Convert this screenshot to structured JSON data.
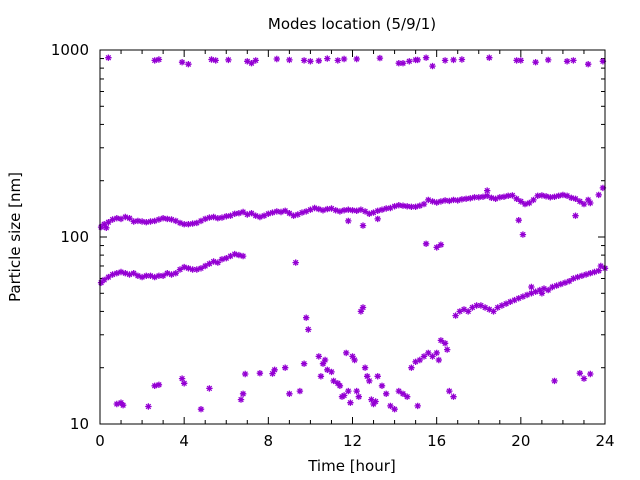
{
  "chart_data": {
    "type": "scatter",
    "title": "Modes location (5/9/1)",
    "xlabel": "Time [hour]",
    "ylabel": "Particle size [nm]",
    "xlim": [
      0,
      24
    ],
    "ylim": [
      10,
      1000
    ],
    "yscale": "log",
    "grid": false,
    "legend": "none",
    "color": "#9400d3",
    "marker": "star",
    "x_ticks": [
      "0",
      "4",
      "8",
      "12",
      "16",
      "20",
      "24"
    ],
    "y_ticks": [
      "10",
      "100",
      "1000"
    ],
    "series": [
      {
        "points": [
          [
            0.4,
            910
          ],
          [
            2.6,
            880
          ],
          [
            2.8,
            890
          ],
          [
            3.9,
            860
          ],
          [
            4.2,
            840
          ],
          [
            5.3,
            890
          ],
          [
            5.5,
            880
          ],
          [
            6.1,
            885
          ],
          [
            7.0,
            870
          ],
          [
            7.2,
            850
          ],
          [
            7.4,
            880
          ],
          [
            8.4,
            895
          ],
          [
            9.0,
            885
          ],
          [
            9.7,
            880
          ],
          [
            10.0,
            870
          ],
          [
            10.4,
            875
          ],
          [
            10.8,
            900
          ],
          [
            11.3,
            880
          ],
          [
            11.6,
            895
          ],
          [
            12.2,
            895
          ],
          [
            13.3,
            905
          ],
          [
            14.2,
            850
          ],
          [
            14.4,
            850
          ],
          [
            14.7,
            870
          ],
          [
            15.0,
            885
          ],
          [
            15.1,
            885
          ],
          [
            15.5,
            910
          ],
          [
            15.8,
            820
          ],
          [
            16.4,
            880
          ],
          [
            16.8,
            885
          ],
          [
            17.2,
            890
          ],
          [
            18.5,
            910
          ],
          [
            19.8,
            880
          ],
          [
            20.0,
            880
          ],
          [
            20.7,
            860
          ],
          [
            21.3,
            885
          ],
          [
            22.2,
            870
          ],
          [
            22.5,
            880
          ],
          [
            23.2,
            840
          ],
          [
            23.9,
            870
          ]
        ]
      },
      {
        "points": [
          [
            0.05,
            113
          ],
          [
            0.2,
            117
          ],
          [
            0.4,
            120
          ],
          [
            0.6,
            124
          ],
          [
            0.8,
            126
          ],
          [
            1.0,
            125
          ],
          [
            1.2,
            128
          ],
          [
            1.4,
            126
          ],
          [
            1.6,
            121
          ],
          [
            1.8,
            122
          ],
          [
            2.0,
            121
          ],
          [
            2.2,
            120
          ],
          [
            2.4,
            121
          ],
          [
            2.6,
            122
          ],
          [
            2.8,
            124
          ],
          [
            3.0,
            126
          ],
          [
            3.2,
            125
          ],
          [
            3.4,
            124
          ],
          [
            3.6,
            122
          ],
          [
            3.8,
            119
          ],
          [
            4.0,
            117
          ],
          [
            4.2,
            117
          ],
          [
            4.4,
            118
          ],
          [
            4.6,
            119
          ],
          [
            4.8,
            122
          ],
          [
            5.0,
            125
          ],
          [
            5.2,
            127
          ],
          [
            5.4,
            128
          ],
          [
            5.6,
            126
          ],
          [
            5.8,
            127
          ],
          [
            6.0,
            129
          ],
          [
            6.2,
            130
          ],
          [
            6.4,
            133
          ],
          [
            6.6,
            134
          ],
          [
            6.8,
            136
          ],
          [
            7.0,
            132
          ],
          [
            7.2,
            134
          ],
          [
            7.4,
            130
          ],
          [
            7.6,
            128
          ],
          [
            7.8,
            130
          ],
          [
            8.0,
            133
          ],
          [
            8.2,
            135
          ],
          [
            8.4,
            137
          ],
          [
            8.6,
            136
          ],
          [
            8.8,
            138
          ],
          [
            9.0,
            134
          ],
          [
            9.2,
            130
          ],
          [
            9.4,
            132
          ],
          [
            9.6,
            135
          ],
          [
            9.8,
            137
          ],
          [
            10.0,
            140
          ],
          [
            10.2,
            143
          ],
          [
            10.4,
            141
          ],
          [
            10.6,
            139
          ],
          [
            10.8,
            141
          ],
          [
            11.0,
            142
          ],
          [
            11.2,
            139
          ],
          [
            11.4,
            137
          ],
          [
            11.6,
            139
          ],
          [
            11.8,
            140
          ],
          [
            12.0,
            139
          ],
          [
            12.2,
            138
          ],
          [
            12.4,
            140
          ],
          [
            12.6,
            137
          ],
          [
            12.8,
            133
          ],
          [
            13.0,
            135
          ],
          [
            13.2,
            138
          ],
          [
            13.4,
            140
          ],
          [
            13.6,
            142
          ],
          [
            13.8,
            143
          ],
          [
            14.0,
            146
          ],
          [
            14.2,
            148
          ],
          [
            14.4,
            147
          ],
          [
            14.6,
            146
          ],
          [
            14.8,
            145
          ],
          [
            15.0,
            145
          ],
          [
            15.2,
            147
          ],
          [
            15.4,
            150
          ],
          [
            15.6,
            158
          ],
          [
            15.8,
            155
          ],
          [
            16.0,
            153
          ],
          [
            16.2,
            155
          ],
          [
            16.4,
            157
          ],
          [
            16.6,
            156
          ],
          [
            16.8,
            158
          ],
          [
            17.0,
            157
          ],
          [
            17.2,
            159
          ],
          [
            17.4,
            160
          ],
          [
            17.6,
            161
          ],
          [
            17.8,
            163
          ],
          [
            18.0,
            163
          ],
          [
            18.2,
            164
          ],
          [
            18.4,
            166
          ],
          [
            18.6,
            162
          ],
          [
            18.8,
            160
          ],
          [
            19.0,
            163
          ],
          [
            19.2,
            164
          ],
          [
            19.4,
            166
          ],
          [
            19.6,
            167
          ],
          [
            19.8,
            160
          ],
          [
            20.0,
            155
          ],
          [
            20.2,
            150
          ],
          [
            20.4,
            152
          ],
          [
            20.6,
            158
          ],
          [
            20.8,
            166
          ],
          [
            21.0,
            167
          ],
          [
            21.2,
            165
          ],
          [
            21.4,
            163
          ],
          [
            21.6,
            164
          ],
          [
            21.8,
            166
          ],
          [
            22.0,
            168
          ],
          [
            22.2,
            166
          ],
          [
            22.4,
            162
          ],
          [
            22.6,
            160
          ],
          [
            22.8,
            155
          ],
          [
            23.0,
            150
          ],
          [
            23.3,
            152
          ],
          [
            23.7,
            168
          ],
          [
            23.9,
            183
          ],
          [
            0.3,
            112
          ],
          [
            12.5,
            115
          ],
          [
            11.8,
            122
          ],
          [
            13.2,
            125
          ],
          [
            19.9,
            123
          ],
          [
            20.1,
            103
          ],
          [
            22.6,
            130
          ],
          [
            23.2,
            158
          ],
          [
            18.4,
            177
          ]
        ]
      },
      {
        "points": [
          [
            0.05,
            57
          ],
          [
            0.2,
            59
          ],
          [
            0.4,
            61
          ],
          [
            0.6,
            63
          ],
          [
            0.8,
            64
          ],
          [
            1.0,
            65
          ],
          [
            1.2,
            64
          ],
          [
            1.4,
            63
          ],
          [
            1.6,
            64
          ],
          [
            1.8,
            62
          ],
          [
            2.0,
            61
          ],
          [
            2.2,
            62
          ],
          [
            2.4,
            62
          ],
          [
            2.6,
            61
          ],
          [
            2.8,
            62
          ],
          [
            3.0,
            62
          ],
          [
            3.2,
            64
          ],
          [
            3.4,
            63
          ],
          [
            3.6,
            64
          ],
          [
            3.8,
            67
          ],
          [
            4.0,
            69
          ],
          [
            4.2,
            68
          ],
          [
            4.4,
            67
          ],
          [
            4.6,
            67
          ],
          [
            4.8,
            68
          ],
          [
            5.0,
            70
          ],
          [
            5.2,
            72
          ],
          [
            5.4,
            74
          ],
          [
            5.6,
            73
          ],
          [
            5.8,
            76
          ],
          [
            6.0,
            77
          ],
          [
            6.2,
            79
          ],
          [
            6.4,
            81
          ],
          [
            6.6,
            80
          ],
          [
            6.8,
            79
          ],
          [
            9.3,
            73
          ],
          [
            15.5,
            92
          ],
          [
            16.2,
            91
          ],
          [
            16.0,
            88
          ],
          [
            20.5,
            54
          ],
          [
            23.8,
            70
          ],
          [
            24.0,
            68
          ]
        ]
      },
      {
        "points": [
          [
            16.9,
            38
          ],
          [
            17.1,
            40
          ],
          [
            17.3,
            41
          ],
          [
            17.5,
            40
          ],
          [
            17.7,
            42
          ],
          [
            17.9,
            43
          ],
          [
            18.1,
            43
          ],
          [
            18.3,
            42
          ],
          [
            18.5,
            41
          ],
          [
            18.7,
            40
          ],
          [
            18.9,
            42
          ],
          [
            19.1,
            43
          ],
          [
            19.3,
            44
          ],
          [
            19.5,
            45
          ],
          [
            19.7,
            46
          ],
          [
            19.9,
            47
          ],
          [
            20.1,
            48
          ],
          [
            20.3,
            49
          ],
          [
            20.5,
            50
          ],
          [
            20.7,
            51
          ],
          [
            20.9,
            52
          ],
          [
            21.1,
            53
          ],
          [
            21.3,
            52
          ],
          [
            21.5,
            54
          ],
          [
            21.7,
            55
          ],
          [
            21.9,
            56
          ],
          [
            22.1,
            57
          ],
          [
            22.3,
            58
          ],
          [
            22.5,
            60
          ],
          [
            22.7,
            61
          ],
          [
            22.9,
            62
          ],
          [
            23.1,
            63
          ],
          [
            23.3,
            64
          ],
          [
            23.5,
            65
          ],
          [
            23.7,
            66
          ],
          [
            21.0,
            50
          ]
        ]
      },
      {
        "points": [
          [
            0.8,
            12.8
          ],
          [
            1.0,
            13.0
          ],
          [
            1.1,
            12.6
          ],
          [
            2.3,
            12.4
          ],
          [
            2.6,
            16
          ],
          [
            2.8,
            16.2
          ],
          [
            3.9,
            17.5
          ],
          [
            4.0,
            16.5
          ],
          [
            4.8,
            12
          ],
          [
            5.2,
            15.5
          ],
          [
            6.7,
            13.5
          ],
          [
            6.8,
            14.5
          ],
          [
            6.9,
            18.5
          ],
          [
            7.6,
            18.7
          ],
          [
            8.2,
            18.6
          ],
          [
            8.3,
            19.5
          ],
          [
            8.8,
            20
          ],
          [
            9.0,
            14.5
          ],
          [
            9.5,
            15
          ],
          [
            9.7,
            21
          ],
          [
            9.8,
            37
          ],
          [
            9.9,
            32
          ],
          [
            10.4,
            23
          ],
          [
            10.5,
            18
          ],
          [
            10.6,
            21
          ],
          [
            10.7,
            22
          ],
          [
            10.8,
            19.5
          ],
          [
            11.0,
            19
          ],
          [
            11.1,
            17
          ],
          [
            11.3,
            16.5
          ],
          [
            11.4,
            16
          ],
          [
            11.5,
            14
          ],
          [
            11.6,
            14.2
          ],
          [
            11.7,
            24
          ],
          [
            11.8,
            15
          ],
          [
            11.9,
            13
          ],
          [
            12.0,
            23
          ],
          [
            12.1,
            22
          ],
          [
            12.2,
            15
          ],
          [
            12.3,
            14
          ],
          [
            12.4,
            40
          ],
          [
            12.5,
            42
          ],
          [
            12.6,
            20
          ],
          [
            12.7,
            18
          ],
          [
            12.8,
            17
          ],
          [
            12.9,
            13.5
          ],
          [
            13.0,
            12.8
          ],
          [
            13.1,
            13.2
          ],
          [
            13.2,
            18
          ],
          [
            13.4,
            16
          ],
          [
            13.6,
            14.5
          ],
          [
            13.8,
            12.5
          ],
          [
            14.0,
            12
          ],
          [
            14.2,
            15
          ],
          [
            14.4,
            14.5
          ],
          [
            14.6,
            14
          ],
          [
            14.8,
            20
          ],
          [
            15.0,
            21.5
          ],
          [
            15.1,
            12.5
          ],
          [
            15.2,
            22
          ],
          [
            15.4,
            23
          ],
          [
            15.6,
            24
          ],
          [
            15.8,
            23
          ],
          [
            16.0,
            24
          ],
          [
            16.1,
            22
          ],
          [
            16.2,
            28
          ],
          [
            16.4,
            27
          ],
          [
            16.5,
            25
          ],
          [
            16.6,
            15
          ],
          [
            16.8,
            14
          ],
          [
            21.6,
            17
          ],
          [
            22.8,
            18.7
          ],
          [
            23.0,
            17.5
          ],
          [
            23.3,
            18.5
          ]
        ]
      }
    ]
  }
}
